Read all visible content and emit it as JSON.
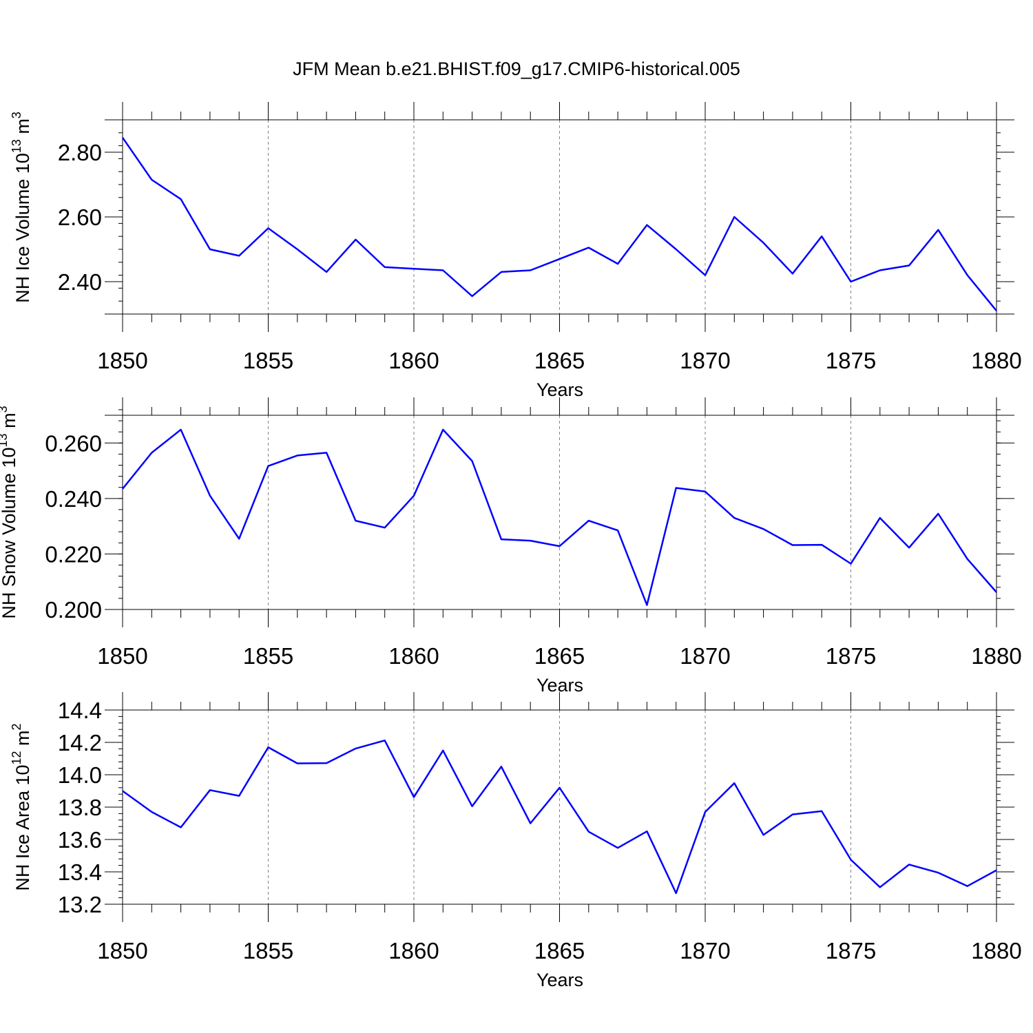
{
  "title": "JFM Mean b.e21.BHIST.f09_g17.CMIP6-historical.005",
  "colors": {
    "series": "#0000ff",
    "axis": "#000000",
    "grid": "#808080"
  },
  "chart_data": [
    {
      "type": "line",
      "name": "ice-volume",
      "ylabel": {
        "prefix": "NH Ice Volume 10",
        "exp1": "13",
        "mid": " m",
        "exp2": "3"
      },
      "xlabel": "Years",
      "xlim": [
        1850,
        1880
      ],
      "ylim": [
        2.3,
        2.9
      ],
      "xticks": [
        "1850",
        "1855",
        "1860",
        "1865",
        "1870",
        "1875",
        "1880"
      ],
      "yticks": [
        {
          "value": 2.4,
          "label": "2.40"
        },
        {
          "value": 2.6,
          "label": "2.60"
        },
        {
          "value": 2.8,
          "label": "2.80"
        }
      ],
      "y_minor_step": 0.04,
      "grid": "dashed vertical at major x ticks",
      "x": [
        1850,
        1851,
        1852,
        1853,
        1854,
        1855,
        1856,
        1857,
        1858,
        1859,
        1860,
        1861,
        1862,
        1863,
        1864,
        1865,
        1866,
        1867,
        1868,
        1869,
        1870,
        1871,
        1872,
        1873,
        1874,
        1875,
        1876,
        1877,
        1878,
        1879,
        1880
      ],
      "values": [
        2.845,
        2.715,
        2.655,
        2.5,
        2.48,
        2.565,
        2.5,
        2.43,
        2.53,
        2.445,
        2.44,
        2.435,
        2.355,
        2.43,
        2.435,
        2.47,
        2.505,
        2.455,
        2.575,
        2.5,
        2.42,
        2.6,
        2.52,
        2.425,
        2.54,
        2.4,
        2.435,
        2.45,
        2.56,
        2.42,
        2.31
      ]
    },
    {
      "type": "line",
      "name": "snow-volume",
      "ylabel": {
        "prefix": "NH Snow Volume 10",
        "exp1": "13",
        "mid": " m",
        "exp2": "3"
      },
      "xlabel": "Years",
      "xlim": [
        1850,
        1880
      ],
      "ylim": [
        0.2,
        0.27
      ],
      "xticks": [
        "1850",
        "1855",
        "1860",
        "1865",
        "1870",
        "1875",
        "1880"
      ],
      "yticks": [
        {
          "value": 0.2,
          "label": "0.200"
        },
        {
          "value": 0.22,
          "label": "0.220"
        },
        {
          "value": 0.24,
          "label": "0.240"
        },
        {
          "value": 0.26,
          "label": "0.260"
        }
      ],
      "y_minor_step": 0.004,
      "grid": "dashed vertical at major x ticks",
      "x": [
        1850,
        1851,
        1852,
        1853,
        1854,
        1855,
        1856,
        1857,
        1858,
        1859,
        1860,
        1861,
        1862,
        1863,
        1864,
        1865,
        1866,
        1867,
        1868,
        1869,
        1870,
        1871,
        1872,
        1873,
        1874,
        1875,
        1876,
        1877,
        1878,
        1879,
        1880
      ],
      "values": [
        0.2435,
        0.2565,
        0.2648,
        0.241,
        0.2255,
        0.2517,
        0.2555,
        0.2565,
        0.232,
        0.2295,
        0.241,
        0.2648,
        0.2535,
        0.2253,
        0.2248,
        0.2228,
        0.232,
        0.2285,
        0.2016,
        0.2438,
        0.2425,
        0.233,
        0.229,
        0.2232,
        0.2233,
        0.2165,
        0.233,
        0.2223,
        0.2345,
        0.2182,
        0.2062
      ]
    },
    {
      "type": "line",
      "name": "ice-area",
      "ylabel": {
        "prefix": "NH Ice Area 10",
        "exp1": "12",
        "mid": " m",
        "exp2": "2"
      },
      "xlabel": "Years",
      "xlim": [
        1850,
        1880
      ],
      "ylim": [
        13.2,
        14.4
      ],
      "xticks": [
        "1850",
        "1855",
        "1860",
        "1865",
        "1870",
        "1875",
        "1880"
      ],
      "yticks": [
        {
          "value": 13.2,
          "label": "13.2"
        },
        {
          "value": 13.4,
          "label": "13.4"
        },
        {
          "value": 13.6,
          "label": "13.6"
        },
        {
          "value": 13.8,
          "label": "13.8"
        },
        {
          "value": 14.0,
          "label": "14.0"
        },
        {
          "value": 14.2,
          "label": "14.2"
        },
        {
          "value": 14.4,
          "label": "14.4"
        }
      ],
      "y_minor_step": 0.04,
      "grid": "dashed vertical at major x ticks",
      "x": [
        1850,
        1851,
        1852,
        1853,
        1854,
        1855,
        1856,
        1857,
        1858,
        1859,
        1860,
        1861,
        1862,
        1863,
        1864,
        1865,
        1866,
        1867,
        1868,
        1869,
        1870,
        1871,
        1872,
        1873,
        1874,
        1875,
        1876,
        1877,
        1878,
        1879,
        1880
      ],
      "values": [
        13.9,
        13.77,
        13.675,
        13.905,
        13.87,
        14.17,
        14.07,
        14.072,
        14.162,
        14.212,
        13.862,
        14.15,
        13.805,
        14.05,
        13.7,
        13.92,
        13.648,
        13.548,
        13.65,
        13.268,
        13.77,
        13.948,
        13.628,
        13.755,
        13.775,
        13.475,
        13.305,
        13.445,
        13.395,
        13.312,
        13.41
      ]
    }
  ]
}
